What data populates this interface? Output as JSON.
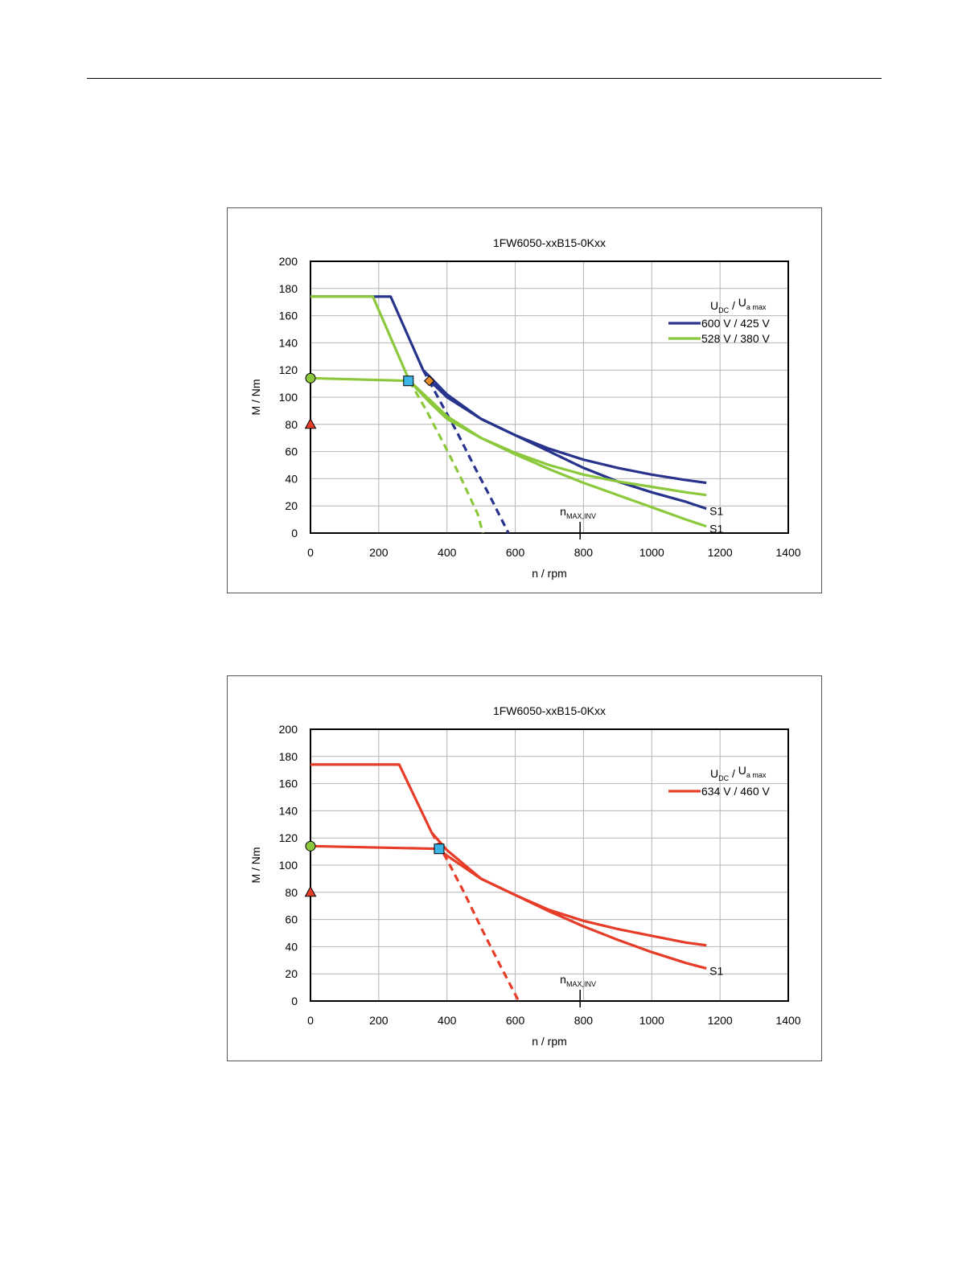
{
  "chart_data": [
    {
      "type": "line",
      "title": "1FW6050-xxB15-0Kxx",
      "xlabel": "n / rpm",
      "ylabel": "M / Nm",
      "xlim": [
        0,
        1400
      ],
      "ylim": [
        0,
        200
      ],
      "xticks": [
        "0",
        "200",
        "400",
        "600",
        "800",
        "1000",
        "1200",
        "1400"
      ],
      "yticks": [
        "0",
        "20",
        "40",
        "60",
        "80",
        "100",
        "120",
        "140",
        "160",
        "180",
        "200"
      ],
      "grid": true,
      "legend": {
        "placement": "top-right",
        "header_main_1": "U",
        "header_sub_1": "DC",
        "header_sep": "/",
        "header_main_2": "U",
        "header_sub_2": "a max",
        "entries": [
          {
            "label": "600 V / 425 V",
            "color": "#28348c"
          },
          {
            "label": "528 V / 380 V",
            "color": "#8cc83c"
          }
        ]
      },
      "series": [
        {
          "group": "600 V / 425 V",
          "color": "#28348c",
          "style": "solid",
          "x": [
            0,
            235,
            330,
            350,
            400,
            500,
            600,
            700,
            800,
            900,
            1000,
            1100,
            1160
          ],
          "y": [
            174,
            174,
            120,
            115,
            102,
            84,
            72,
            62,
            54,
            48,
            43,
            39,
            37
          ]
        },
        {
          "group": "600 V / 425 V",
          "color": "#28348c",
          "style": "solid",
          "label": "S1",
          "x": [
            350,
            400,
            500,
            600,
            700,
            800,
            900,
            1000,
            1100,
            1160
          ],
          "y": [
            112,
            100,
            84,
            72,
            60,
            48,
            38,
            30,
            23,
            18
          ]
        },
        {
          "group": "600 V / 425 V",
          "color": "#28348c",
          "style": "dashed",
          "x": [
            330,
            380,
            430,
            480,
            530,
            580
          ],
          "y": [
            120,
            97,
            74,
            49,
            25,
            0
          ]
        },
        {
          "group": "528 V / 380 V",
          "color": "#8cc83c",
          "style": "solid",
          "x": [
            0,
            183,
            290,
            350,
            400,
            500,
            600,
            700,
            800,
            900,
            1000,
            1100,
            1160
          ],
          "y": [
            174,
            174,
            112,
            98,
            86,
            70,
            59,
            50,
            43,
            38,
            34,
            30,
            28
          ]
        },
        {
          "group": "528 V / 380 V",
          "color": "#8cc83c",
          "style": "solid",
          "label": "S1",
          "x": [
            0,
            290,
            350,
            400,
            500,
            600,
            700,
            800,
            900,
            1000,
            1100,
            1160
          ],
          "y": [
            114,
            112,
            96,
            84,
            70,
            58,
            47,
            37,
            28,
            19,
            10,
            5
          ]
        },
        {
          "group": "528 V / 380 V",
          "color": "#8cc83c",
          "style": "dashed",
          "x": [
            290,
            340,
            390,
            440,
            490,
            505
          ],
          "y": [
            112,
            90,
            66,
            41,
            14,
            0
          ]
        }
      ],
      "markers": [
        {
          "shape": "circle",
          "x": 0,
          "y": 114,
          "color": "#8cc83c"
        },
        {
          "shape": "triangle",
          "x": 0,
          "y": 80,
          "color": "#e63c28"
        },
        {
          "shape": "square",
          "x": 287,
          "y": 112,
          "color": "#3cb4e6"
        },
        {
          "shape": "diamond",
          "x": 348,
          "y": 112,
          "color": "#e68c28"
        }
      ],
      "annotations": [
        {
          "x": 790,
          "main": "n",
          "sub": "MAX,INV"
        }
      ]
    },
    {
      "type": "line",
      "title": "1FW6050-xxB15-0Kxx",
      "xlabel": "n / rpm",
      "ylabel": "M / Nm",
      "xlim": [
        0,
        1400
      ],
      "ylim": [
        0,
        200
      ],
      "xticks": [
        "0",
        "200",
        "400",
        "600",
        "800",
        "1000",
        "1200",
        "1400"
      ],
      "yticks": [
        "0",
        "20",
        "40",
        "60",
        "80",
        "100",
        "120",
        "140",
        "160",
        "180",
        "200"
      ],
      "grid": true,
      "legend": {
        "placement": "top-right",
        "header_main_1": "U",
        "header_sub_1": "DC",
        "header_sep": "/",
        "header_main_2": "U",
        "header_sub_2": "a max",
        "entries": [
          {
            "label": "634 V / 460 V",
            "color": "#e63c28"
          }
        ]
      },
      "series": [
        {
          "group": "634 V / 460 V",
          "color": "#e63c28",
          "style": "solid",
          "x": [
            0,
            260,
            355,
            400,
            500,
            600,
            700,
            800,
            900,
            1000,
            1100,
            1160
          ],
          "y": [
            174,
            174,
            124,
            111,
            90,
            78,
            67,
            59,
            53,
            48,
            43,
            41
          ]
        },
        {
          "group": "634 V / 460 V",
          "color": "#e63c28",
          "style": "solid",
          "label": "S1",
          "x": [
            0,
            375,
            400,
            500,
            600,
            700,
            800,
            900,
            1000,
            1100,
            1160
          ],
          "y": [
            114,
            112,
            107,
            90,
            78,
            66,
            55,
            45,
            36,
            28,
            24
          ]
        },
        {
          "group": "634 V / 460 V",
          "color": "#e63c28",
          "style": "dashed",
          "x": [
            355,
            400,
            450,
            500,
            550,
            610
          ],
          "y": [
            124,
            104,
            80,
            54,
            29,
            0
          ]
        }
      ],
      "markers": [
        {
          "shape": "circle",
          "x": 0,
          "y": 114,
          "color": "#8cc83c"
        },
        {
          "shape": "triangle",
          "x": 0,
          "y": 80,
          "color": "#e63c28"
        },
        {
          "shape": "square",
          "x": 377,
          "y": 112,
          "color": "#3cb4e6"
        }
      ],
      "annotations": [
        {
          "x": 790,
          "main": "n",
          "sub": "MAX,INV"
        }
      ]
    }
  ]
}
